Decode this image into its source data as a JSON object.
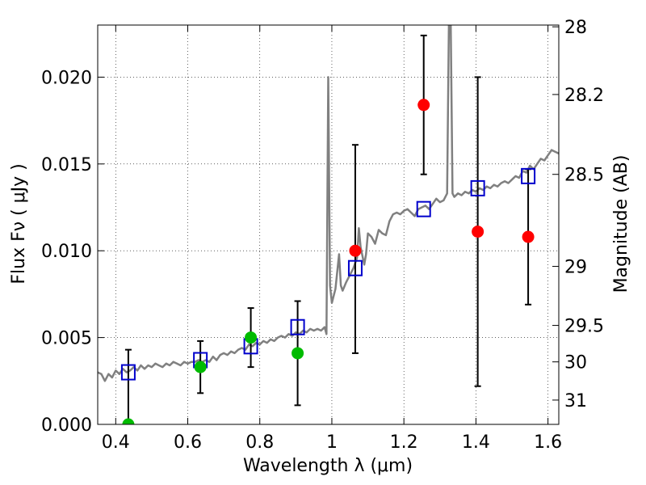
{
  "chart_data": {
    "type": "scatter",
    "title": "",
    "xlabel": "Wavelength  λ (μm)",
    "ylabel": "Flux  Fν  ( μJy )",
    "y2label": "Magnitude (AB)",
    "xlim": [
      0.35,
      1.63
    ],
    "ylim": [
      0.0,
      0.023
    ],
    "grid": true,
    "x_ticks": [
      {
        "value": 0.4,
        "label": "0.4"
      },
      {
        "value": 0.6,
        "label": "0.6"
      },
      {
        "value": 0.8,
        "label": "0.8"
      },
      {
        "value": 1.0,
        "label": "1"
      },
      {
        "value": 1.2,
        "label": "1.2"
      },
      {
        "value": 1.4,
        "label": "1.4"
      },
      {
        "value": 1.6,
        "label": "1.6"
      }
    ],
    "y_ticks": [
      {
        "value": 0.0,
        "label": "0.000"
      },
      {
        "value": 0.005,
        "label": "0.005"
      },
      {
        "value": 0.01,
        "label": "0.010"
      },
      {
        "value": 0.015,
        "label": "0.015"
      },
      {
        "value": 0.02,
        "label": "0.020"
      }
    ],
    "y2_ticks": [
      {
        "flux": 0.0229,
        "label": "28"
      },
      {
        "flux": 0.019,
        "label": "28.2"
      },
      {
        "flux": 0.0144,
        "label": "28.5"
      },
      {
        "flux": 0.0091,
        "label": "29"
      },
      {
        "flux": 0.0057,
        "label": "29.5"
      },
      {
        "flux": 0.0036,
        "label": "30"
      },
      {
        "flux": 0.0014,
        "label": "31"
      }
    ],
    "series": [
      {
        "kind": "line",
        "color": "#808080",
        "points": [
          [
            0.35,
            0.003
          ],
          [
            0.36,
            0.0029
          ],
          [
            0.37,
            0.0025
          ],
          [
            0.38,
            0.0029
          ],
          [
            0.39,
            0.0027
          ],
          [
            0.4,
            0.0031
          ],
          [
            0.41,
            0.0029
          ],
          [
            0.42,
            0.0032
          ],
          [
            0.43,
            0.003
          ],
          [
            0.44,
            0.0031
          ],
          [
            0.45,
            0.0033
          ],
          [
            0.46,
            0.0031
          ],
          [
            0.47,
            0.0034
          ],
          [
            0.48,
            0.0032
          ],
          [
            0.49,
            0.0034
          ],
          [
            0.5,
            0.0033
          ],
          [
            0.51,
            0.0035
          ],
          [
            0.52,
            0.0034
          ],
          [
            0.53,
            0.0033
          ],
          [
            0.54,
            0.0035
          ],
          [
            0.55,
            0.0034
          ],
          [
            0.56,
            0.0036
          ],
          [
            0.57,
            0.0035
          ],
          [
            0.58,
            0.0034
          ],
          [
            0.59,
            0.0036
          ],
          [
            0.6,
            0.0035
          ],
          [
            0.61,
            0.0036
          ],
          [
            0.62,
            0.0036
          ],
          [
            0.63,
            0.0037
          ],
          [
            0.64,
            0.0036
          ],
          [
            0.65,
            0.0037
          ],
          [
            0.66,
            0.0036
          ],
          [
            0.67,
            0.0039
          ],
          [
            0.68,
            0.0037
          ],
          [
            0.69,
            0.004
          ],
          [
            0.7,
            0.0041
          ],
          [
            0.71,
            0.004
          ],
          [
            0.72,
            0.0042
          ],
          [
            0.73,
            0.0041
          ],
          [
            0.74,
            0.0043
          ],
          [
            0.75,
            0.0044
          ],
          [
            0.76,
            0.0043
          ],
          [
            0.77,
            0.0046
          ],
          [
            0.78,
            0.0045
          ],
          [
            0.79,
            0.0047
          ],
          [
            0.8,
            0.0046
          ],
          [
            0.81,
            0.0048
          ],
          [
            0.82,
            0.0047
          ],
          [
            0.83,
            0.0049
          ],
          [
            0.84,
            0.0048
          ],
          [
            0.85,
            0.005
          ],
          [
            0.86,
            0.0051
          ],
          [
            0.87,
            0.005
          ],
          [
            0.88,
            0.0052
          ],
          [
            0.89,
            0.0051
          ],
          [
            0.9,
            0.0053
          ],
          [
            0.91,
            0.0052
          ],
          [
            0.92,
            0.0054
          ],
          [
            0.93,
            0.0053
          ],
          [
            0.94,
            0.0055
          ],
          [
            0.95,
            0.0054
          ],
          [
            0.96,
            0.0055
          ],
          [
            0.97,
            0.0054
          ],
          [
            0.98,
            0.0056
          ],
          [
            0.985,
            0.0052
          ],
          [
            0.99,
            0.02
          ],
          [
            0.995,
            0.008
          ],
          [
            1.0,
            0.007
          ],
          [
            1.01,
            0.0078
          ],
          [
            1.02,
            0.0098
          ],
          [
            1.025,
            0.008
          ],
          [
            1.03,
            0.0077
          ],
          [
            1.04,
            0.0082
          ],
          [
            1.05,
            0.0086
          ],
          [
            1.06,
            0.009
          ],
          [
            1.07,
            0.0096
          ],
          [
            1.075,
            0.0113
          ],
          [
            1.08,
            0.0102
          ],
          [
            1.09,
            0.0092
          ],
          [
            1.095,
            0.0098
          ],
          [
            1.1,
            0.011
          ],
          [
            1.11,
            0.0108
          ],
          [
            1.12,
            0.0104
          ],
          [
            1.13,
            0.0112
          ],
          [
            1.14,
            0.011
          ],
          [
            1.15,
            0.0109
          ],
          [
            1.16,
            0.0117
          ],
          [
            1.17,
            0.0121
          ],
          [
            1.18,
            0.0122
          ],
          [
            1.19,
            0.0121
          ],
          [
            1.2,
            0.0123
          ],
          [
            1.21,
            0.0124
          ],
          [
            1.22,
            0.0122
          ],
          [
            1.23,
            0.012
          ],
          [
            1.24,
            0.0124
          ],
          [
            1.25,
            0.0125
          ],
          [
            1.26,
            0.0126
          ],
          [
            1.27,
            0.0124
          ],
          [
            1.28,
            0.0127
          ],
          [
            1.29,
            0.013
          ],
          [
            1.3,
            0.0128
          ],
          [
            1.31,
            0.0129
          ],
          [
            1.32,
            0.0133
          ],
          [
            1.325,
            0.023
          ],
          [
            1.33,
            0.023
          ],
          [
            1.335,
            0.0133
          ],
          [
            1.34,
            0.0131
          ],
          [
            1.35,
            0.0133
          ],
          [
            1.36,
            0.0132
          ],
          [
            1.37,
            0.0134
          ],
          [
            1.38,
            0.0133
          ],
          [
            1.39,
            0.0135
          ],
          [
            1.4,
            0.0134
          ],
          [
            1.41,
            0.0136
          ],
          [
            1.42,
            0.0135
          ],
          [
            1.43,
            0.0137
          ],
          [
            1.44,
            0.0136
          ],
          [
            1.45,
            0.0138
          ],
          [
            1.46,
            0.0137
          ],
          [
            1.47,
            0.0139
          ],
          [
            1.48,
            0.014
          ],
          [
            1.49,
            0.0139
          ],
          [
            1.5,
            0.0141
          ],
          [
            1.51,
            0.0143
          ],
          [
            1.52,
            0.0142
          ],
          [
            1.53,
            0.0146
          ],
          [
            1.54,
            0.0145
          ],
          [
            1.55,
            0.0149
          ],
          [
            1.56,
            0.0147
          ],
          [
            1.57,
            0.015
          ],
          [
            1.58,
            0.0153
          ],
          [
            1.59,
            0.0152
          ],
          [
            1.6,
            0.0155
          ],
          [
            1.61,
            0.0158
          ],
          [
            1.62,
            0.0157
          ],
          [
            1.63,
            0.0156
          ]
        ]
      },
      {
        "kind": "squares",
        "color": "#0000cc",
        "points": [
          [
            0.435,
            0.003
          ],
          [
            0.635,
            0.0037
          ],
          [
            0.775,
            0.0045
          ],
          [
            0.905,
            0.0056
          ],
          [
            1.065,
            0.009
          ],
          [
            1.255,
            0.0124
          ],
          [
            1.405,
            0.0136
          ],
          [
            1.545,
            0.0143
          ]
        ]
      },
      {
        "kind": "circles",
        "color": "#00bb00",
        "points": [
          [
            0.435,
            0.0
          ],
          [
            0.635,
            0.0033
          ],
          [
            0.775,
            0.005
          ],
          [
            0.905,
            0.0041
          ]
        ]
      },
      {
        "kind": "circles",
        "color": "#ff0000",
        "points": [
          [
            1.065,
            0.01
          ],
          [
            1.255,
            0.0184
          ],
          [
            1.405,
            0.0111
          ],
          [
            1.545,
            0.0108
          ]
        ]
      }
    ],
    "errorbars": [
      {
        "x": 0.435,
        "low": 0.0,
        "high": 0.0043
      },
      {
        "x": 0.635,
        "low": 0.0018,
        "high": 0.0048
      },
      {
        "x": 0.775,
        "low": 0.0033,
        "high": 0.0067
      },
      {
        "x": 0.905,
        "low": 0.0011,
        "high": 0.0071
      },
      {
        "x": 1.065,
        "low": 0.0041,
        "high": 0.0161
      },
      {
        "x": 1.255,
        "low": 0.0144,
        "high": 0.0224
      },
      {
        "x": 1.405,
        "low": 0.0022,
        "high": 0.02
      },
      {
        "x": 1.545,
        "low": 0.0069,
        "high": 0.0147
      }
    ]
  }
}
